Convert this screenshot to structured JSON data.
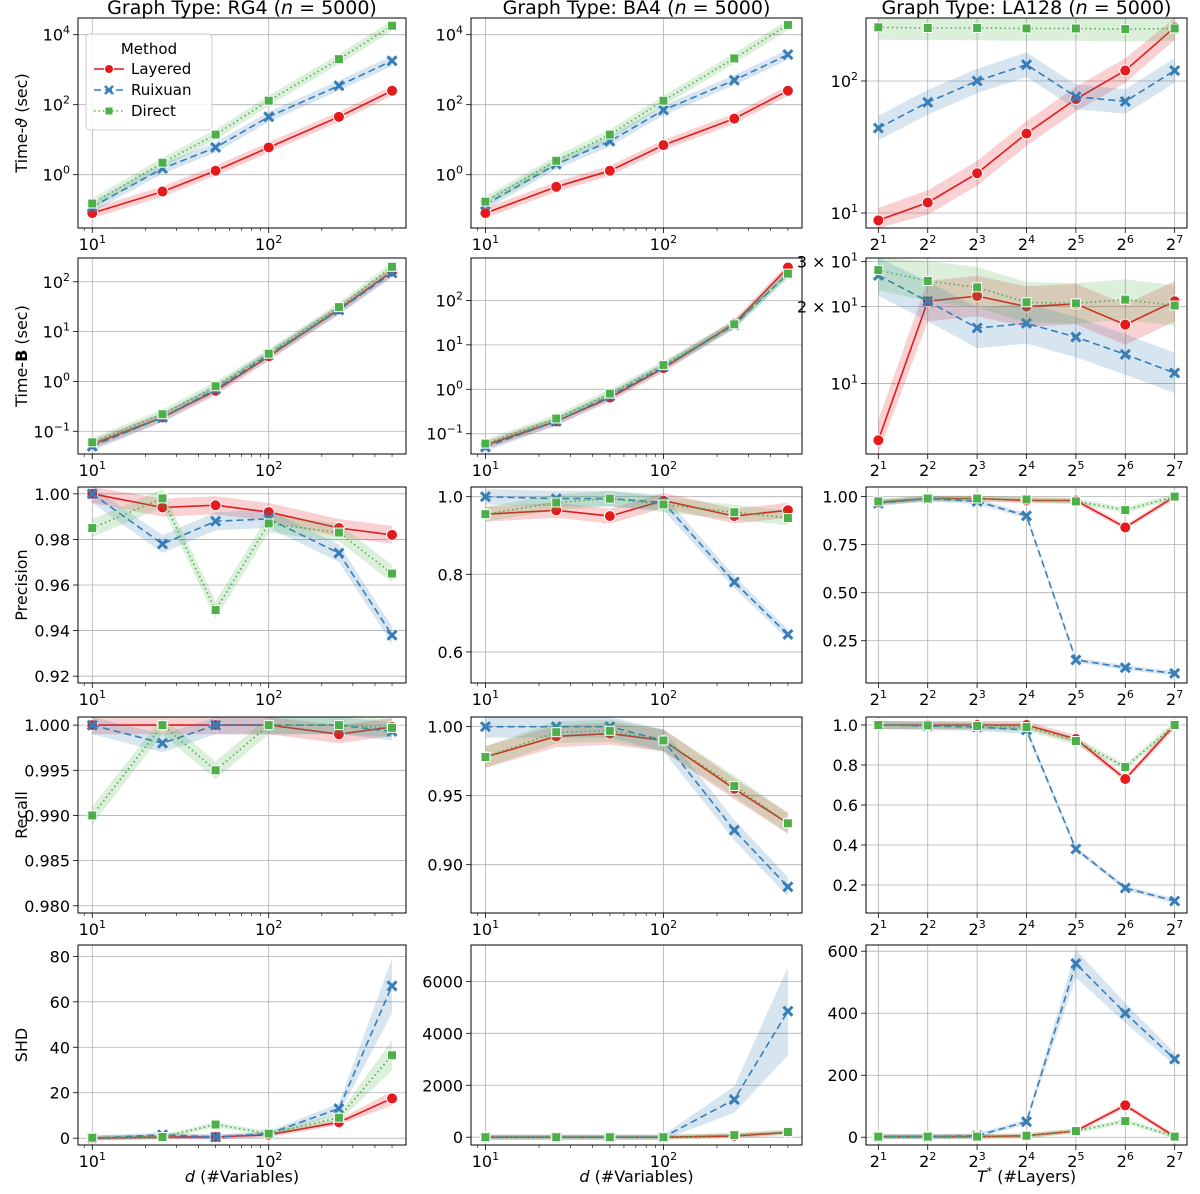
{
  "chart_data": {
    "type": "line",
    "column_titles": [
      "Graph Type: RG4 (n = 5000)",
      "Graph Type: BA4 (n = 5000)",
      "Graph Type: LA128 (n = 5000)"
    ],
    "row_ylabels": [
      "Time-ϑ (sec)",
      "Time-B (sec)",
      "Precision",
      "Recall",
      "SHD"
    ],
    "column_xlabels": [
      "d (#Variables)",
      "d (#Variables)",
      "T* (#Layers)"
    ],
    "legend": {
      "title": "Method",
      "entries": [
        "Layered",
        "Ruixuan",
        "Direct"
      ],
      "placement": "upper-left of first panel"
    },
    "grid": true,
    "series_colors": {
      "Layered": "#e41a1c",
      "Ruixuan": "#377eb8",
      "Direct": "#4daf4a"
    },
    "x_d": [
      10,
      25,
      50,
      100,
      250,
      500
    ],
    "x_T": [
      2,
      4,
      8,
      16,
      32,
      64,
      128
    ],
    "panels": [
      {
        "row": 0,
        "col": 0,
        "yscale": "log",
        "ylim": [
          0.03,
          30000
        ],
        "yticks": [
          {
            "v": 1,
            "t": "10^0"
          },
          {
            "v": 100,
            "t": "10^2"
          },
          {
            "v": 10000,
            "t": "10^4"
          }
        ],
        "series": [
          {
            "name": "Layered",
            "values": [
              0.08,
              0.33,
              1.3,
              6,
              45,
              250
            ]
          },
          {
            "name": "Ruixuan",
            "values": [
              0.12,
              1.5,
              6,
              45,
              350,
              1800
            ]
          },
          {
            "name": "Direct",
            "values": [
              0.15,
              2.2,
              14,
              130,
              2000,
              18000
            ]
          }
        ]
      },
      {
        "row": 0,
        "col": 1,
        "yscale": "log",
        "ylim": [
          0.03,
          30000
        ],
        "yticks": [
          {
            "v": 1,
            "t": "10^0"
          },
          {
            "v": 100,
            "t": "10^2"
          },
          {
            "v": 10000,
            "t": "10^4"
          }
        ],
        "series": [
          {
            "name": "Layered",
            "values": [
              0.08,
              0.45,
              1.3,
              7,
              40,
              250
            ]
          },
          {
            "name": "Ruixuan",
            "values": [
              0.14,
              2.0,
              9,
              70,
              500,
              2700
            ]
          },
          {
            "name": "Direct",
            "values": [
              0.17,
              2.5,
              14,
              130,
              2100,
              19000
            ]
          }
        ]
      },
      {
        "row": 0,
        "col": 2,
        "yscale": "log",
        "ylim": [
          7.7,
          300
        ],
        "yticks": [
          {
            "v": 10,
            "t": "10^1"
          },
          {
            "v": 100,
            "t": "10^2"
          }
        ],
        "series": [
          {
            "name": "Layered",
            "values": [
              8.8,
              12,
              20,
              40,
              73,
              120,
              255
            ]
          },
          {
            "name": "Ruixuan",
            "values": [
              44,
              69,
              100,
              133,
              76,
              70,
              120
            ]
          },
          {
            "name": "Direct",
            "values": [
              255,
              252,
              252,
              250,
              250,
              247,
              250
            ]
          }
        ]
      },
      {
        "row": 1,
        "col": 0,
        "yscale": "log",
        "ylim": [
          0.035,
          300
        ],
        "yticks": [
          {
            "v": 0.1,
            "t": "10^-1"
          },
          {
            "v": 1,
            "t": "10^0"
          },
          {
            "v": 10,
            "t": "10^1"
          },
          {
            "v": 100,
            "t": "10^2"
          }
        ],
        "series": [
          {
            "name": "Layered",
            "values": [
              0.055,
              0.19,
              0.65,
              3.2,
              28,
              160
            ]
          },
          {
            "name": "Ruixuan",
            "values": [
              0.05,
              0.19,
              0.7,
              3.4,
              27,
              150
            ]
          },
          {
            "name": "Direct",
            "values": [
              0.06,
              0.22,
              0.8,
              3.6,
              31,
              200
            ]
          }
        ]
      },
      {
        "row": 1,
        "col": 1,
        "yscale": "log",
        "ylim": [
          0.035,
          900
        ],
        "yticks": [
          {
            "v": 0.1,
            "t": "10^-1"
          },
          {
            "v": 1,
            "t": "10^0"
          },
          {
            "v": 10,
            "t": "10^1"
          },
          {
            "v": 100,
            "t": "10^2"
          }
        ],
        "series": [
          {
            "name": "Layered",
            "values": [
              0.055,
              0.19,
              0.65,
              3.0,
              30,
              550
            ]
          },
          {
            "name": "Ruixuan",
            "values": [
              0.05,
              0.19,
              0.7,
              3.2,
              28,
              400
            ]
          },
          {
            "name": "Direct",
            "values": [
              0.06,
              0.22,
              0.8,
              3.5,
              29,
              400
            ]
          }
        ]
      },
      {
        "row": 1,
        "col": 2,
        "yscale": "log",
        "ylim": [
          5.3,
          31
        ],
        "yticks": [
          {
            "v": 10,
            "t": "10^1"
          },
          {
            "v": 20,
            "t": "2 × 10^1"
          },
          {
            "v": 30,
            "t": "3 × 10^1"
          }
        ],
        "series": [
          {
            "name": "Layered",
            "values": [
              6,
              21,
              22,
              20,
              20.5,
              17,
              21
            ]
          },
          {
            "name": "Ruixuan",
            "values": [
              26.5,
              21,
              16.5,
              17.2,
              15.2,
              13,
              11
            ]
          },
          {
            "name": "Direct",
            "values": [
              27.8,
              25.2,
              23.8,
              20.8,
              20.6,
              21.3,
              20.2
            ]
          }
        ]
      },
      {
        "row": 2,
        "col": 0,
        "yscale": "linear",
        "ylim": [
          0.917,
          1.003
        ],
        "yticks": [
          {
            "v": 0.92,
            "t": "0.92"
          },
          {
            "v": 0.94,
            "t": "0.94"
          },
          {
            "v": 0.96,
            "t": "0.96"
          },
          {
            "v": 0.98,
            "t": "0.98"
          },
          {
            "v": 1.0,
            "t": "1.00"
          }
        ],
        "series": [
          {
            "name": "Layered",
            "values": [
              1.0,
              0.994,
              0.995,
              0.992,
              0.985,
              0.982
            ]
          },
          {
            "name": "Ruixuan",
            "values": [
              1.0,
              0.978,
              0.988,
              0.989,
              0.974,
              0.938
            ]
          },
          {
            "name": "Direct",
            "values": [
              0.985,
              0.998,
              0.949,
              0.987,
              0.983,
              0.965
            ]
          }
        ]
      },
      {
        "row": 2,
        "col": 1,
        "yscale": "linear",
        "ylim": [
          0.52,
          1.025
        ],
        "yticks": [
          {
            "v": 0.6,
            "t": "0.6"
          },
          {
            "v": 0.8,
            "t": "0.8"
          },
          {
            "v": 1.0,
            "t": "1.0"
          }
        ],
        "series": [
          {
            "name": "Layered",
            "values": [
              0.955,
              0.965,
              0.95,
              0.99,
              0.95,
              0.965
            ]
          },
          {
            "name": "Ruixuan",
            "values": [
              1.0,
              0.995,
              0.995,
              0.985,
              0.78,
              0.645
            ]
          },
          {
            "name": "Direct",
            "values": [
              0.955,
              0.985,
              0.995,
              0.98,
              0.96,
              0.945
            ]
          }
        ]
      },
      {
        "row": 2,
        "col": 2,
        "yscale": "linear",
        "ylim": [
          0.03,
          1.05
        ],
        "yticks": [
          {
            "v": 0.25,
            "t": "0.25"
          },
          {
            "v": 0.5,
            "t": "0.50"
          },
          {
            "v": 0.75,
            "t": "0.75"
          },
          {
            "v": 1.0,
            "t": "1.00"
          }
        ],
        "series": [
          {
            "name": "Layered",
            "values": [
              0.97,
              0.99,
              0.99,
              0.98,
              0.98,
              0.84,
              1.0
            ]
          },
          {
            "name": "Ruixuan",
            "values": [
              0.965,
              0.99,
              0.975,
              0.9,
              0.15,
              0.11,
              0.08
            ]
          },
          {
            "name": "Direct",
            "values": [
              0.975,
              0.99,
              0.99,
              0.985,
              0.975,
              0.93,
              1.0
            ]
          }
        ]
      },
      {
        "row": 3,
        "col": 0,
        "yscale": "linear",
        "ylim": [
          0.9792,
          1.0009
        ],
        "yticks": [
          {
            "v": 0.98,
            "t": "0.980"
          },
          {
            "v": 0.985,
            "t": "0.985"
          },
          {
            "v": 0.99,
            "t": "0.990"
          },
          {
            "v": 0.995,
            "t": "0.995"
          },
          {
            "v": 1.0,
            "t": "1.000"
          }
        ],
        "series": [
          {
            "name": "Layered",
            "values": [
              1.0,
              1.0,
              1.0,
              1.0,
              0.999,
              0.9998
            ]
          },
          {
            "name": "Ruixuan",
            "values": [
              1.0,
              0.998,
              1.0,
              1.0,
              1.0,
              0.9993
            ]
          },
          {
            "name": "Direct",
            "values": [
              0.99,
              1.0,
              0.995,
              1.0,
              1.0,
              0.9997
            ]
          }
        ]
      },
      {
        "row": 3,
        "col": 1,
        "yscale": "linear",
        "ylim": [
          0.865,
          1.007
        ],
        "yticks": [
          {
            "v": 0.9,
            "t": "0.90"
          },
          {
            "v": 0.95,
            "t": "0.95"
          },
          {
            "v": 1.0,
            "t": "1.00"
          }
        ],
        "series": [
          {
            "name": "Layered",
            "values": [
              0.978,
              0.993,
              0.995,
              0.99,
              0.955,
              0.93
            ]
          },
          {
            "name": "Ruixuan",
            "values": [
              1.0,
              1.0,
              1.0,
              0.99,
              0.925,
              0.884
            ]
          },
          {
            "name": "Direct",
            "values": [
              0.978,
              0.996,
              0.997,
              0.99,
              0.957,
              0.93
            ]
          }
        ]
      },
      {
        "row": 3,
        "col": 2,
        "yscale": "linear",
        "ylim": [
          0.06,
          1.04
        ],
        "yticks": [
          {
            "v": 0.2,
            "t": "0.2"
          },
          {
            "v": 0.4,
            "t": "0.4"
          },
          {
            "v": 0.6,
            "t": "0.6"
          },
          {
            "v": 0.8,
            "t": "0.8"
          },
          {
            "v": 1.0,
            "t": "1.0"
          }
        ],
        "series": [
          {
            "name": "Layered",
            "values": [
              1.0,
              1.0,
              1.0,
              1.0,
              0.93,
              0.73,
              1.0
            ]
          },
          {
            "name": "Ruixuan",
            "values": [
              1.0,
              0.995,
              0.99,
              0.975,
              0.38,
              0.185,
              0.12
            ]
          },
          {
            "name": "Direct",
            "values": [
              1.0,
              0.998,
              0.995,
              0.99,
              0.92,
              0.79,
              1.0
            ]
          }
        ]
      },
      {
        "row": 4,
        "col": 0,
        "yscale": "linear",
        "ylim": [
          -3,
          85
        ],
        "yticks": [
          {
            "v": 0,
            "t": "0"
          },
          {
            "v": 20,
            "t": "20"
          },
          {
            "v": 40,
            "t": "40"
          },
          {
            "v": 60,
            "t": "60"
          },
          {
            "v": 80,
            "t": "80"
          }
        ],
        "series": [
          {
            "name": "Layered",
            "values": [
              0,
              0.5,
              0.5,
              1.5,
              7,
              17.5
            ]
          },
          {
            "name": "Ruixuan",
            "values": [
              0,
              1.5,
              0.5,
              2,
              13,
              67
            ]
          },
          {
            "name": "Direct",
            "values": [
              0.2,
              0.5,
              6,
              2,
              9,
              36.5
            ]
          }
        ]
      },
      {
        "row": 4,
        "col": 1,
        "yscale": "linear",
        "ylim": [
          -300,
          7400
        ],
        "yticks": [
          {
            "v": 0,
            "t": "0"
          },
          {
            "v": 2000,
            "t": "2000"
          },
          {
            "v": 4000,
            "t": "4000"
          },
          {
            "v": 6000,
            "t": "6000"
          }
        ],
        "series": [
          {
            "name": "Layered",
            "values": [
              0,
              0,
              0,
              0,
              50,
              180
            ]
          },
          {
            "name": "Ruixuan",
            "values": [
              0,
              0,
              0,
              0,
              1450,
              4850
            ]
          },
          {
            "name": "Direct",
            "values": [
              0,
              0,
              0,
              0,
              80,
              200
            ]
          }
        ]
      },
      {
        "row": 4,
        "col": 2,
        "yscale": "linear",
        "ylim": [
          -25,
          620
        ],
        "yticks": [
          {
            "v": 0,
            "t": "0"
          },
          {
            "v": 200,
            "t": "200"
          },
          {
            "v": 400,
            "t": "400"
          },
          {
            "v": 600,
            "t": "600"
          }
        ],
        "series": [
          {
            "name": "Layered",
            "values": [
              2,
              2,
              2,
              5,
              20,
              103,
              2
            ]
          },
          {
            "name": "Ruixuan",
            "values": [
              2,
              2,
              5,
              50,
              560,
              400,
              252
            ]
          },
          {
            "name": "Direct",
            "values": [
              2,
              2,
              2,
              5,
              20,
              52,
              2
            ]
          }
        ]
      }
    ]
  }
}
